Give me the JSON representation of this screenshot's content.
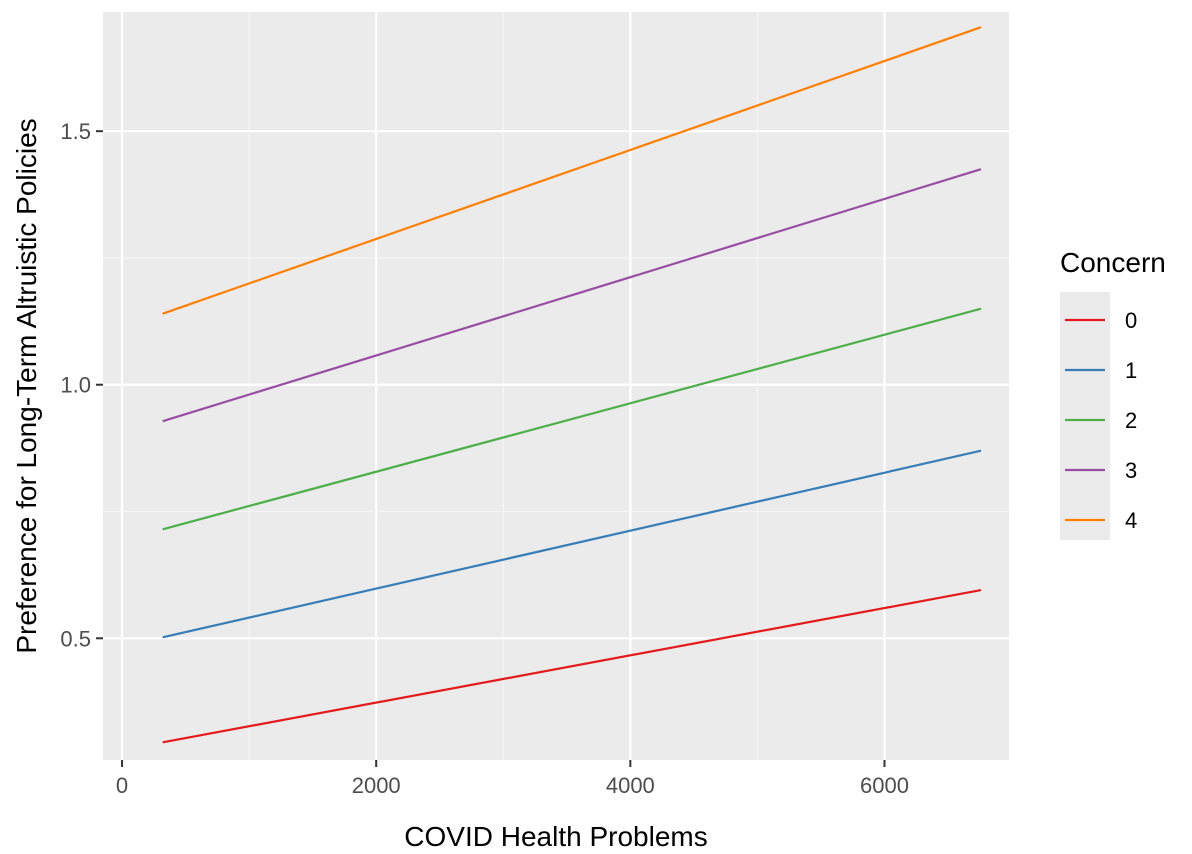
{
  "chart_data": {
    "type": "line",
    "xlabel": "COVID Health Problems",
    "ylabel": "Preference for Long-Term Altruistic Policies",
    "xlim": [
      -150,
      6980
    ],
    "ylim": [
      0.26,
      1.735
    ],
    "x_ticks": [
      0,
      2000,
      4000,
      6000
    ],
    "x_tick_labels": [
      "0",
      "2000",
      "4000",
      "6000"
    ],
    "y_ticks": [
      0.5,
      1.0,
      1.5
    ],
    "y_tick_labels": [
      "0.5",
      "1.0",
      "1.5"
    ],
    "grid": true,
    "legend": {
      "title": "Concern",
      "position": "right"
    },
    "series": [
      {
        "name": "0",
        "color": "#E41A1C",
        "x": [
          320,
          6760
        ],
        "y": [
          0.295,
          0.595
        ]
      },
      {
        "name": "1",
        "color": "#377EB8",
        "x": [
          320,
          6760
        ],
        "y": [
          0.502,
          0.87
        ]
      },
      {
        "name": "2",
        "color": "#4DAF4A",
        "x": [
          320,
          6760
        ],
        "y": [
          0.715,
          1.15
        ]
      },
      {
        "name": "3",
        "color": "#984EA3",
        "x": [
          320,
          6760
        ],
        "y": [
          0.928,
          1.425
        ]
      },
      {
        "name": "4",
        "color": "#FF7F00",
        "x": [
          320,
          6760
        ],
        "y": [
          1.14,
          1.705
        ]
      }
    ]
  }
}
